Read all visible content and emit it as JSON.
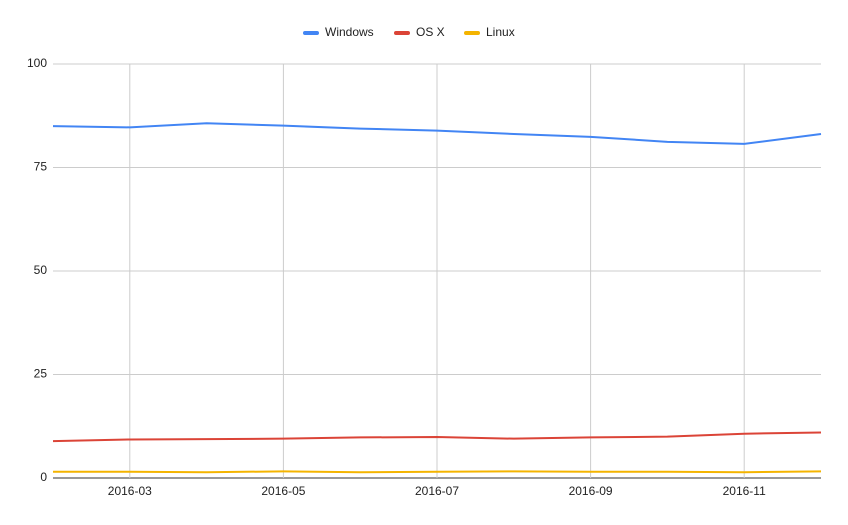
{
  "chart_data": {
    "type": "line",
    "x": [
      "2016-02",
      "2016-03",
      "2016-04",
      "2016-05",
      "2016-06",
      "2016-07",
      "2016-08",
      "2016-09",
      "2016-10",
      "2016-11",
      "2016-12"
    ],
    "xticks": [
      "2016-03",
      "2016-05",
      "2016-07",
      "2016-09",
      "2016-11"
    ],
    "series": [
      {
        "name": "Windows",
        "color": "#4285f4",
        "values": [
          85.0,
          84.7,
          85.7,
          85.1,
          84.4,
          83.9,
          83.1,
          82.4,
          81.2,
          80.7,
          83.1
        ]
      },
      {
        "name": "OS X",
        "color": "#db4437",
        "values": [
          8.9,
          9.3,
          9.4,
          9.5,
          9.8,
          9.9,
          9.5,
          9.8,
          10.0,
          10.7,
          11.0
        ]
      },
      {
        "name": "Linux",
        "color": "#f4b400",
        "values": [
          1.5,
          1.5,
          1.4,
          1.6,
          1.4,
          1.5,
          1.6,
          1.5,
          1.5,
          1.4,
          1.6
        ]
      }
    ],
    "ylim": [
      0,
      100
    ],
    "yticks": [
      0,
      25,
      50,
      75,
      100
    ],
    "grid": true,
    "legend": "top"
  }
}
